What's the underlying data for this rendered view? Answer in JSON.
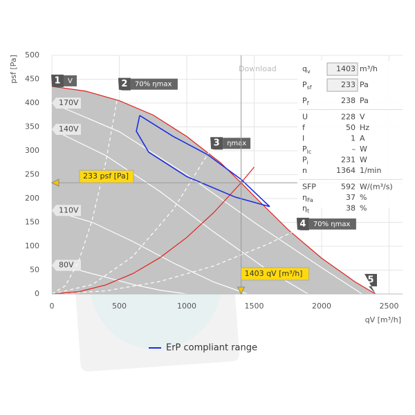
{
  "chart_data": {
    "type": "line",
    "download": "Download",
    "y_axis_label": "psf [Pa]",
    "x_axis_label": "qV [m³/h]",
    "xlim": [
      0,
      2600
    ],
    "ylim": [
      0,
      500
    ],
    "xticks": [
      0,
      500,
      1000,
      1500,
      2000,
      2500
    ],
    "yticks": [
      0,
      50,
      100,
      150,
      200,
      250,
      300,
      350,
      400,
      450,
      500
    ],
    "grid": true,
    "series": [
      {
        "color": "#e0201c",
        "fill": "#c4c4c4",
        "x": [
          0,
          250,
          500,
          750,
          1000,
          1250,
          1403,
          1500,
          1750,
          2000,
          2250,
          2400
        ],
        "values": [
          435,
          425,
          405,
          375,
          330,
          275,
          233,
          205,
          135,
          75,
          25,
          0
        ]
      },
      {
        "name": "170V",
        "color": "#ffffff",
        "x": [
          0,
          500,
          1000,
          1500,
          2000,
          2300
        ],
        "values": [
          400,
          340,
          250,
          150,
          55,
          0
        ]
      },
      {
        "name": "140V",
        "color": "#ffffff",
        "x": [
          0,
          400,
          800,
          1200,
          1600,
          1900
        ],
        "values": [
          345,
          290,
          215,
          130,
          50,
          0
        ]
      },
      {
        "name": "110V",
        "color": "#ffffff",
        "x": [
          0,
          300,
          600,
          900,
          1200,
          1450
        ],
        "values": [
          175,
          150,
          110,
          65,
          25,
          0
        ]
      },
      {
        "name": "80V",
        "color": "#ffffff",
        "x": [
          0,
          200,
          400,
          600,
          800,
          1000
        ],
        "values": [
          60,
          50,
          35,
          20,
          8,
          0
        ]
      },
      {
        "color": "#ffffff",
        "dash": true,
        "x": [
          0,
          100,
          200,
          300,
          400,
          497
        ],
        "values": [
          0,
          17.3,
          69.3,
          156,
          277,
          428
        ]
      },
      {
        "color": "#ffffff",
        "dash": true,
        "x": [
          0,
          300,
          600,
          900,
          1180
        ],
        "values": [
          0,
          19.6,
          78.6,
          176.9,
          304
        ]
      },
      {
        "color": "#ffffff",
        "dash": true,
        "x": [
          0,
          400,
          800,
          1200,
          1600,
          1820
        ],
        "values": [
          0,
          6.5,
          26.1,
          58.7,
          104.3,
          135
        ]
      },
      {
        "color": "#e0201c",
        "x": [
          0,
          200,
          400,
          600,
          800,
          1000,
          1200,
          1403,
          1500
        ],
        "values": [
          0,
          4.7,
          18.9,
          42.6,
          75.8,
          118.4,
          170.5,
          233,
          266
        ]
      },
      {
        "name": "ErP compliant range",
        "legend": true,
        "color": "#1a2ee0",
        "x": [
          651,
          900,
          1154,
          1403,
          1615,
          1359,
          1000,
          718,
          626,
          651
        ],
        "values": [
          374,
          330,
          292,
          240,
          183,
          203,
          246,
          297,
          341,
          374
        ]
      }
    ],
    "annotations": [
      {
        "marker": "1",
        "text": "V",
        "x": 0,
        "y": 435
      },
      {
        "marker": "2",
        "text": "70% ηmax",
        "x": 497,
        "y": 428
      },
      {
        "marker": "3",
        "text": "ηmax",
        "x": 1180,
        "y": 304
      },
      {
        "marker": "4",
        "text": "70% ηmax",
        "x": 1820,
        "y": 135
      },
      {
        "marker": "5",
        "x": 2400,
        "y": 0
      }
    ],
    "operating_point": {
      "x": 1403,
      "y": 233,
      "y_label": "233 psf [Pa]",
      "x_label": "1403 qV [m³/h]"
    },
    "panel": {
      "groups": [
        [
          {
            "symbol": "q",
            "sub": "v",
            "value": 1403,
            "unit": "m³/h",
            "input": true
          },
          {
            "symbol": "P",
            "sub": "sf",
            "value": 233,
            "unit": "Pa",
            "input": true
          },
          {
            "symbol": "P",
            "sub": "f",
            "value": 238,
            "unit": "Pa"
          }
        ],
        [
          {
            "symbol": "U",
            "value": 228,
            "unit": "V"
          },
          {
            "symbol": "f",
            "value": 50,
            "unit": "Hz"
          },
          {
            "symbol": "I",
            "value": 1,
            "unit": "A"
          },
          {
            "symbol": "P",
            "sub": "lc",
            "value": "–",
            "unit": "W"
          },
          {
            "symbol": "P",
            "sub": "i",
            "value": 231,
            "unit": "W"
          },
          {
            "symbol": "n",
            "value": 1364,
            "unit": "1/min"
          }
        ],
        [
          {
            "symbol": "SFP",
            "value": 592,
            "unit": "W/(m³/s)"
          },
          {
            "symbol": "η",
            "sub": "Fa",
            "value": 37,
            "unit": "%"
          },
          {
            "symbol": "η",
            "sub": "t",
            "value": 38,
            "unit": "%"
          }
        ]
      ]
    }
  }
}
